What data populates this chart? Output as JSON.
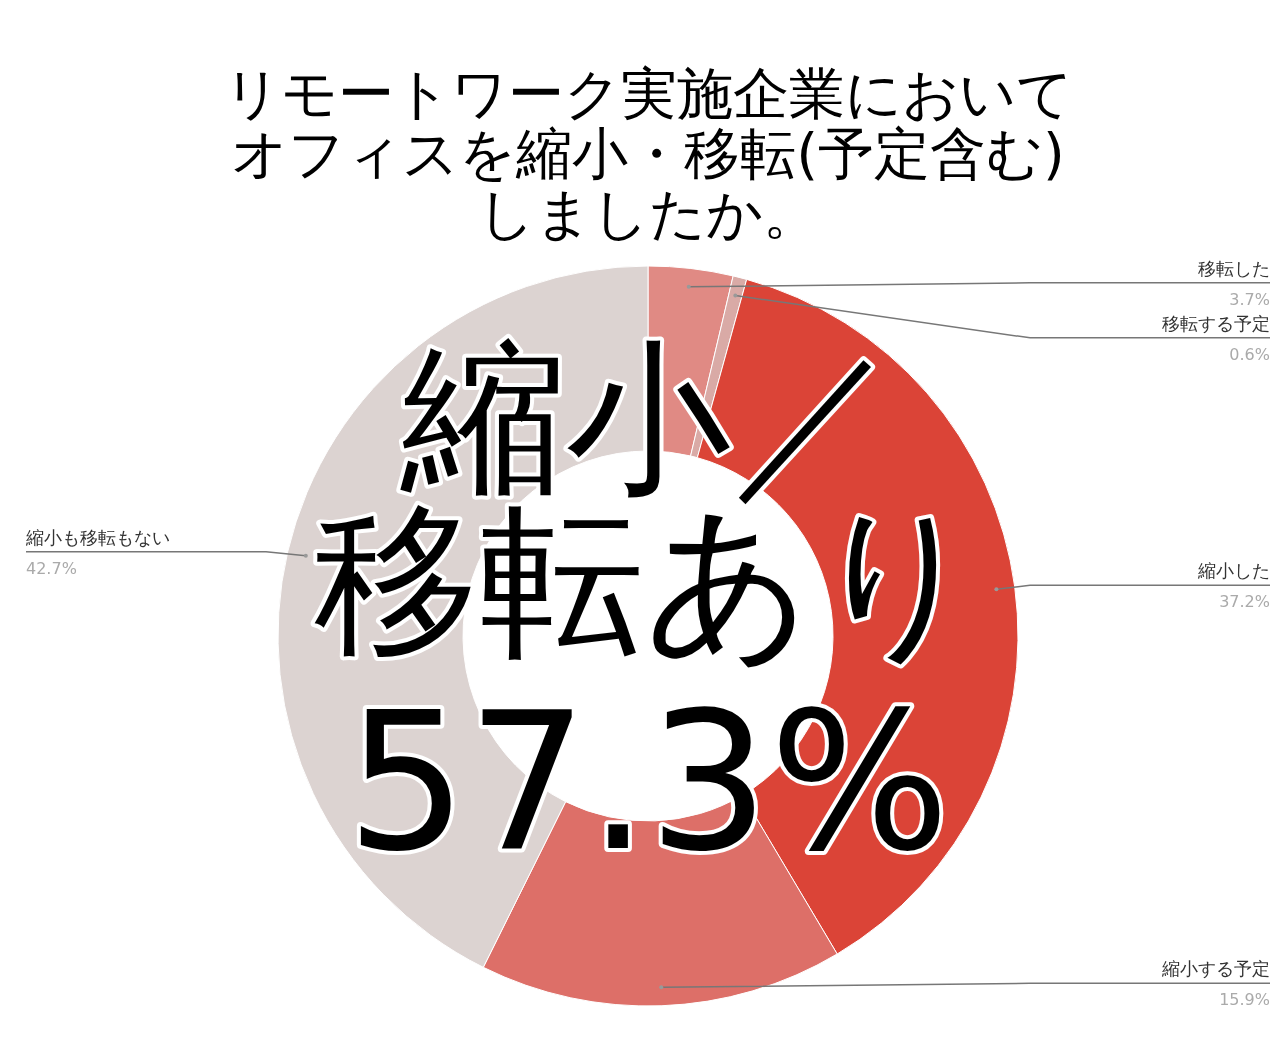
{
  "chart_data": {
    "type": "donut",
    "title": "リモートワーク実施企業においてオフィスを縮小・移転(予定含む)しましたか。",
    "categories": [
      "移転した",
      "移転する予定",
      "縮小した",
      "縮小する予定",
      "縮小も移転もない"
    ],
    "values": [
      3.7,
      0.6,
      37.2,
      15.9,
      42.7
    ],
    "colors": [
      "#e08a84",
      "#d9aaa6",
      "#db4437",
      "#dd6f68",
      "#dcd3d1"
    ],
    "value_labels": [
      "3.7%",
      "0.6%",
      "37.2%",
      "15.9%",
      "42.7%"
    ],
    "annotations": [
      "縮小／",
      "移転あり",
      "57.3%"
    ]
  }
}
